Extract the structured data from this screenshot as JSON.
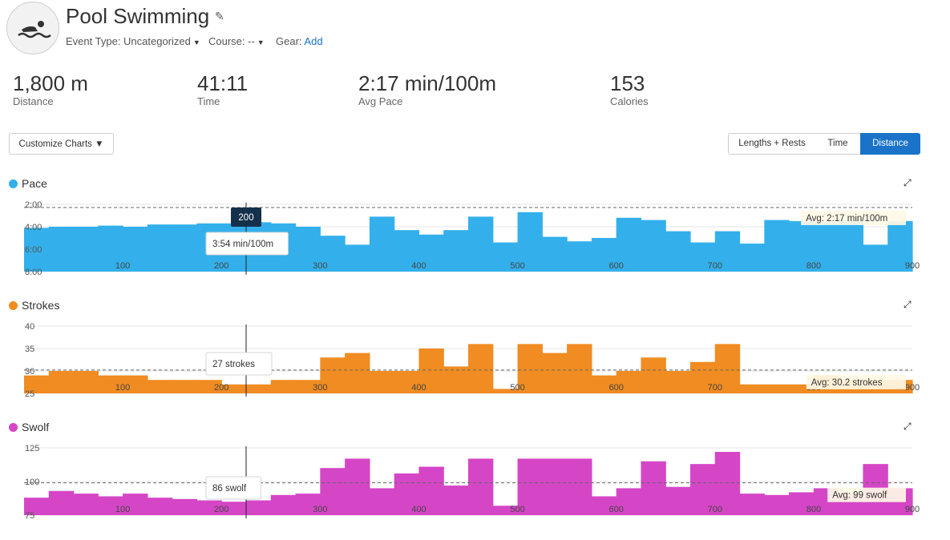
{
  "header": {
    "title": "Pool Swimming",
    "event_type_label": "Event Type: Uncategorized",
    "course_label": "Course: --",
    "gear_label": "Gear:",
    "gear_link": "Add"
  },
  "stats": [
    {
      "value": "1,800 m",
      "label": "Distance"
    },
    {
      "value": "41:11",
      "label": "Time"
    },
    {
      "value": "2:17 min/100m",
      "label": "Avg Pace"
    },
    {
      "value": "153",
      "label": "Calories"
    }
  ],
  "toolbar": {
    "customize_label": "Customize Charts ▼",
    "view_options": [
      "Lengths + Rests",
      "Time",
      "Distance"
    ],
    "active_view": "Distance"
  },
  "colors": {
    "pace": "#33b0eb",
    "strokes": "#f08c21",
    "swolf": "#d546c6",
    "accent": "#1a73c8"
  },
  "icons": [
    "swimmer-icon",
    "pencil-icon",
    "expand-icon"
  ],
  "cursor": {
    "x": 225,
    "label": "200"
  },
  "chart_data": [
    {
      "name": "Pace",
      "type": "bar",
      "x_ticks": [
        100,
        200,
        300,
        400,
        500,
        600,
        700,
        800,
        900
      ],
      "xlim": [
        0,
        900
      ],
      "y_ticks": [
        "2:00",
        "4:00",
        "6:00",
        "8:00"
      ],
      "ylim_minutes": [
        2,
        8
      ],
      "y_inverted": true,
      "avg_minutes": 2.283,
      "avg_label": "Avg: 2:17 min/100m",
      "tooltip": "3:54 min/100m",
      "segments_x_m": [
        0,
        25,
        50,
        75,
        100,
        125,
        150,
        175,
        200,
        225,
        250,
        275,
        300,
        325,
        350,
        375,
        400,
        425,
        450,
        475,
        500,
        525,
        550,
        575,
        600,
        625,
        650,
        675,
        700,
        725,
        750,
        775,
        800,
        825,
        850,
        875,
        900
      ],
      "values_minutes": [
        4.1,
        4.0,
        4.0,
        3.9,
        4.0,
        3.8,
        3.8,
        3.7,
        3.7,
        3.6,
        3.7,
        4.0,
        4.8,
        5.6,
        3.1,
        4.3,
        4.7,
        4.3,
        3.1,
        5.4,
        2.7,
        4.9,
        5.3,
        5.0,
        3.2,
        3.4,
        4.4,
        5.4,
        4.4,
        5.5,
        3.4,
        3.5,
        3.6,
        3.4,
        5.6,
        3.5
      ]
    },
    {
      "name": "Strokes",
      "type": "bar",
      "x_ticks": [
        100,
        200,
        300,
        400,
        500,
        600,
        700,
        800,
        900
      ],
      "xlim": [
        0,
        900
      ],
      "y_ticks": [
        40,
        35,
        30,
        25
      ],
      "ylim": [
        25,
        40
      ],
      "avg": 30.2,
      "avg_label": "Avg: 30.2 strokes",
      "tooltip": "27 strokes",
      "values": [
        29,
        30,
        30,
        29,
        29,
        28,
        28,
        28,
        27,
        27,
        28,
        28,
        33,
        34,
        30,
        30,
        35,
        31,
        36,
        26,
        36,
        34,
        36,
        29,
        30,
        33,
        30,
        32,
        36,
        27,
        27,
        27,
        29,
        28,
        28,
        28
      ]
    },
    {
      "name": "Swolf",
      "type": "bar",
      "x_ticks": [
        100,
        200,
        300,
        400,
        500,
        600,
        700,
        800,
        900
      ],
      "xlim": [
        0,
        900
      ],
      "y_ticks": [
        125,
        100,
        75
      ],
      "ylim": [
        75,
        125
      ],
      "avg": 99,
      "avg_label": "Avg: 99 swolf",
      "tooltip": "86 swolf",
      "values": [
        88,
        93,
        91,
        89,
        91,
        88,
        87,
        86,
        85,
        86,
        90,
        91,
        110,
        117,
        95,
        106,
        111,
        97,
        117,
        82,
        117,
        117,
        117,
        89,
        95,
        115,
        96,
        113,
        122,
        91,
        90,
        92,
        95,
        91,
        113,
        95
      ]
    }
  ]
}
